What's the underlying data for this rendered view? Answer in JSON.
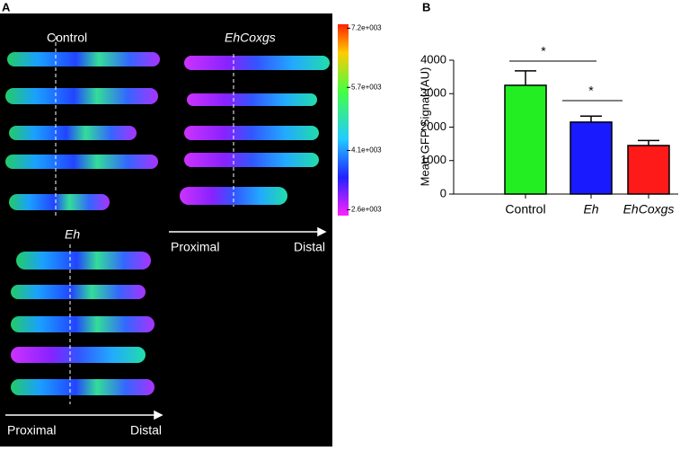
{
  "panel_labels": [
    "A",
    "B"
  ],
  "panel_a": {
    "groups": [
      "Control",
      "EhCoxgs",
      "Eh"
    ],
    "axis_labels": [
      [
        "Proximal",
        "Distal"
      ],
      [
        "Proximal",
        "Distal"
      ]
    ],
    "colorbar": {
      "clim": [
        2450,
        7300
      ],
      "ticks": [
        {
          "value": 7200,
          "label": "7.2e+003"
        },
        {
          "value": 5700,
          "label": "5.7e+003"
        },
        {
          "value": 4100,
          "label": "4.1e+003"
        },
        {
          "value": 2600,
          "label": "2.6e+003"
        }
      ]
    }
  },
  "chart_data": {
    "type": "bar",
    "y_label": "Mean GFP Signal (AU)",
    "categories": [
      "Control",
      "Eh",
      "EhCoxgs"
    ],
    "values": [
      3250,
      2150,
      1450
    ],
    "errors": [
      430,
      180,
      150
    ],
    "colors": [
      "#22ee22",
      "#1a1aff",
      "#ff1a1a"
    ],
    "ylim": [
      0,
      4000
    ],
    "yticks": [
      0,
      1000,
      2000,
      3000,
      4000
    ],
    "annotations": [
      "*",
      "*"
    ]
  }
}
